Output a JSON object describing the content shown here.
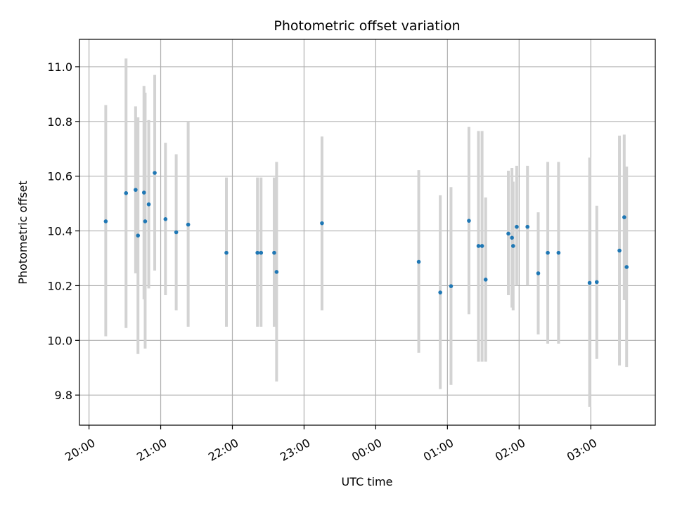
{
  "colors": {
    "point": "#1f77b4",
    "errorbar": "#d3d3d3",
    "grid": "#b0b0b0",
    "axis": "#000000"
  },
  "chart_data": {
    "type": "scatter",
    "title": "Photometric offset variation",
    "xlabel": "UTC time",
    "ylabel": "Photometric offset",
    "x_unit": "UTC time, 20:00 to 04:00",
    "xlim": [
      "19:52",
      "03:54"
    ],
    "ylim": [
      9.69,
      11.1
    ],
    "grid": true,
    "x_ticks": [
      "20:00",
      "21:00",
      "22:00",
      "23:00",
      "00:00",
      "01:00",
      "02:00",
      "03:00"
    ],
    "y_ticks": [
      "9.8",
      "10.0",
      "10.2",
      "10.4",
      "10.6",
      "10.8",
      "11.0"
    ],
    "series": [
      {
        "marker": "point with vertical error bar",
        "points": [
          {
            "x": "20:14",
            "y": 10.435,
            "low": 10.015,
            "high": 10.86
          },
          {
            "x": "20:31",
            "y": 10.538,
            "low": 10.045,
            "high": 11.03
          },
          {
            "x": "20:39",
            "y": 10.55,
            "low": 10.245,
            "high": 10.855
          },
          {
            "x": "20:41",
            "y": 10.383,
            "low": 9.95,
            "high": 10.815
          },
          {
            "x": "20:46",
            "y": 10.54,
            "low": 10.15,
            "high": 10.93
          },
          {
            "x": "20:47",
            "y": 10.435,
            "low": 9.97,
            "high": 10.905
          },
          {
            "x": "20:50",
            "y": 10.497,
            "low": 10.19,
            "high": 10.805
          },
          {
            "x": "20:55",
            "y": 10.612,
            "low": 10.255,
            "high": 10.97
          },
          {
            "x": "21:04",
            "y": 10.443,
            "low": 10.165,
            "high": 10.722
          },
          {
            "x": "21:13",
            "y": 10.395,
            "low": 10.11,
            "high": 10.68
          },
          {
            "x": "21:23",
            "y": 10.423,
            "low": 10.05,
            "high": 10.8
          },
          {
            "x": "21:55",
            "y": 10.32,
            "low": 10.05,
            "high": 10.595
          },
          {
            "x": "22:21",
            "y": 10.32,
            "low": 10.05,
            "high": 10.595
          },
          {
            "x": "22:24",
            "y": 10.32,
            "low": 10.05,
            "high": 10.595
          },
          {
            "x": "22:35",
            "y": 10.32,
            "low": 10.05,
            "high": 10.595
          },
          {
            "x": "22:37",
            "y": 10.25,
            "low": 9.85,
            "high": 10.652
          },
          {
            "x": "23:15",
            "y": 10.428,
            "low": 10.11,
            "high": 10.745
          },
          {
            "x": "00:36",
            "y": 10.287,
            "low": 9.955,
            "high": 10.622
          },
          {
            "x": "00:54",
            "y": 10.175,
            "low": 9.822,
            "high": 10.53
          },
          {
            "x": "01:03",
            "y": 10.198,
            "low": 9.837,
            "high": 10.56
          },
          {
            "x": "01:18",
            "y": 10.437,
            "low": 10.095,
            "high": 10.78
          },
          {
            "x": "01:26",
            "y": 10.345,
            "low": 9.922,
            "high": 10.765
          },
          {
            "x": "01:29",
            "y": 10.345,
            "low": 9.922,
            "high": 10.765
          },
          {
            "x": "01:32",
            "y": 10.222,
            "low": 9.922,
            "high": 10.522
          },
          {
            "x": "01:51",
            "y": 10.39,
            "low": 10.165,
            "high": 10.62
          },
          {
            "x": "01:54",
            "y": 10.375,
            "low": 10.12,
            "high": 10.63
          },
          {
            "x": "01:55",
            "y": 10.345,
            "low": 10.11,
            "high": 10.58
          },
          {
            "x": "01:58",
            "y": 10.415,
            "low": 10.2,
            "high": 10.638
          },
          {
            "x": "02:07",
            "y": 10.415,
            "low": 10.2,
            "high": 10.638
          },
          {
            "x": "02:16",
            "y": 10.245,
            "low": 10.022,
            "high": 10.468
          },
          {
            "x": "02:24",
            "y": 10.32,
            "low": 9.988,
            "high": 10.652
          },
          {
            "x": "02:33",
            "y": 10.32,
            "low": 9.988,
            "high": 10.652
          },
          {
            "x": "02:59",
            "y": 10.21,
            "low": 9.757,
            "high": 10.668
          },
          {
            "x": "03:05",
            "y": 10.213,
            "low": 9.932,
            "high": 10.492
          },
          {
            "x": "03:24",
            "y": 10.328,
            "low": 9.908,
            "high": 10.748
          },
          {
            "x": "03:28",
            "y": 10.45,
            "low": 10.147,
            "high": 10.752
          },
          {
            "x": "03:30",
            "y": 10.268,
            "low": 9.903,
            "high": 10.635
          }
        ]
      }
    ]
  }
}
